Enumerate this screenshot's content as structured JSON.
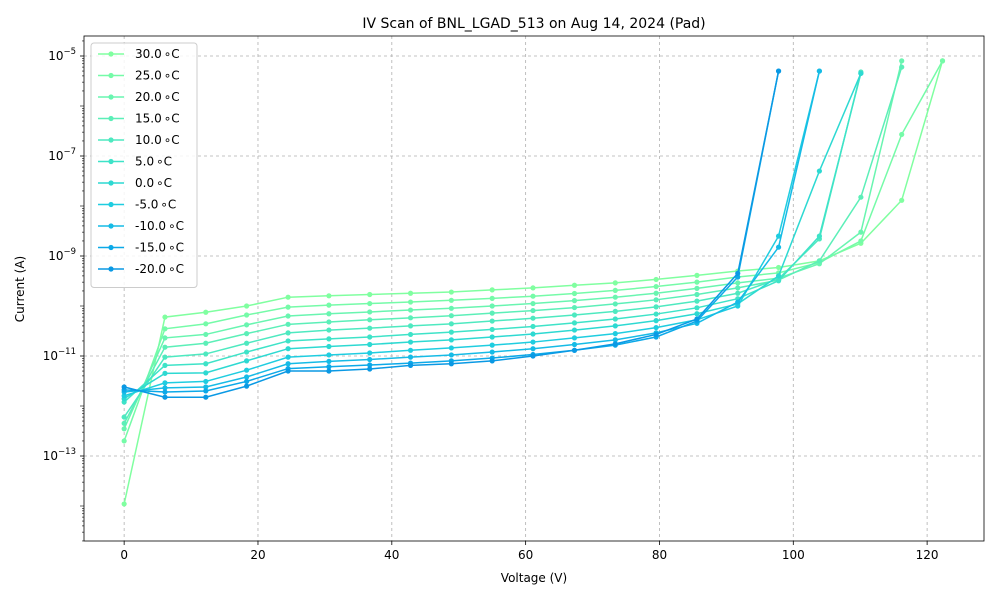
{
  "chart_data": {
    "type": "line",
    "title": "IV Scan of BNL_LGAD_513 on Aug 14, 2024 (Pad)",
    "xlabel": "Voltage (V)",
    "ylabel": "Current (A)",
    "xlim": [
      -6,
      128.5
    ],
    "ylim_log10": [
      -14.7,
      -4.6
    ],
    "y_scale": "log",
    "grid": true,
    "legend_position": "top-left",
    "x_ticks": [
      0,
      20,
      40,
      60,
      80,
      100,
      120
    ],
    "x_tick_labels": [
      "0",
      "20",
      "40",
      "60",
      "80",
      "100",
      "120"
    ],
    "y_ticks_log10": [
      -13,
      -11,
      -9,
      -7,
      -5
    ],
    "y_tick_labels": [
      "10",
      "10",
      "10",
      "10",
      "10"
    ],
    "y_tick_exponents": [
      "−13",
      "−11",
      "−9",
      "−7",
      "−5"
    ],
    "series": [
      {
        "name": "30.0$^\\circ$C",
        "label": "30.0",
        "unit": "∘C",
        "color": "#80ffa0",
        "x": [
          0,
          6.1,
          12.2,
          18.3,
          24.5,
          30.6,
          36.7,
          42.8,
          48.9,
          55.0,
          61.1,
          67.3,
          73.4,
          79.5,
          85.6,
          91.7,
          97.8,
          103.9,
          110.1,
          116.2,
          122.3
        ],
        "y": [
          1.1e-14,
          6e-11,
          7.5e-11,
          1e-10,
          1.5e-10,
          1.6e-10,
          1.7e-10,
          1.8e-10,
          1.9e-10,
          2.1e-10,
          2.3e-10,
          2.6e-10,
          2.9e-10,
          3.4e-10,
          4.1e-10,
          5e-10,
          5.9e-10,
          8e-10,
          1.8e-09,
          1.3e-08,
          8e-06
        ]
      },
      {
        "name": "25.0$^\\circ$C",
        "label": "25.0",
        "unit": "∘C",
        "color": "#75fba8",
        "x": [
          0,
          6.1,
          12.2,
          18.3,
          24.5,
          30.6,
          36.7,
          42.8,
          48.9,
          55.0,
          61.1,
          67.3,
          73.4,
          79.5,
          85.6,
          91.7,
          97.8,
          103.9,
          110.1,
          116.2,
          122.3
        ],
        "y": [
          2e-13,
          3.5e-11,
          4.4e-11,
          6.6e-11,
          9.5e-11,
          1.04e-10,
          1.12e-10,
          1.2e-10,
          1.3e-10,
          1.42e-10,
          1.57e-10,
          1.78e-10,
          2.05e-10,
          2.45e-10,
          3e-10,
          3.8e-10,
          4.6e-10,
          7.4e-10,
          2e-09,
          2.7e-07,
          8e-06
        ]
      },
      {
        "name": "20.0$^\\circ$C",
        "label": "20.0",
        "unit": "∘C",
        "color": "#69f5b0",
        "x": [
          0,
          6.1,
          12.2,
          18.3,
          24.5,
          30.6,
          36.7,
          42.8,
          48.9,
          55.0,
          61.1,
          67.3,
          73.4,
          79.5,
          85.6,
          91.7,
          97.8,
          103.9,
          110.1,
          116.2
        ],
        "y": [
          3.5e-13,
          2.3e-11,
          2.7e-11,
          4.2e-11,
          6.3e-11,
          7e-11,
          7.6e-11,
          8.3e-11,
          9e-11,
          1e-10,
          1.12e-10,
          1.28e-10,
          1.5e-10,
          1.8e-10,
          2.25e-10,
          2.9e-10,
          3.6e-10,
          7e-10,
          3e-09,
          8e-06
        ]
      },
      {
        "name": "15.0$^\\circ$C",
        "label": "15.0",
        "unit": "∘C",
        "color": "#5cefb8",
        "x": [
          0,
          6.1,
          12.2,
          18.3,
          24.5,
          30.6,
          36.7,
          42.8,
          48.9,
          55.0,
          61.1,
          67.3,
          73.4,
          79.5,
          85.6,
          91.7,
          97.8,
          103.9,
          110.1,
          116.2
        ],
        "y": [
          4.5e-13,
          1.5e-11,
          1.8e-11,
          2.8e-11,
          4.3e-11,
          4.8e-11,
          5.3e-11,
          5.8e-11,
          6.4e-11,
          7.2e-11,
          8.1e-11,
          9.3e-11,
          1.1e-10,
          1.33e-10,
          1.7e-10,
          2.3e-10,
          3.3e-10,
          8e-10,
          1.5e-08,
          6e-06
        ]
      },
      {
        "name": "10.0$^\\circ$C",
        "label": "10.0",
        "unit": "∘C",
        "color": "#4ee9c0",
        "x": [
          0,
          6.1,
          12.2,
          18.3,
          24.5,
          30.6,
          36.7,
          42.8,
          48.9,
          55.0,
          61.1,
          67.3,
          73.4,
          79.5,
          85.6,
          91.7,
          97.8,
          103.9,
          110.1
        ],
        "y": [
          6e-13,
          9.5e-12,
          1.1e-11,
          1.8e-11,
          2.9e-11,
          3.3e-11,
          3.6e-11,
          4e-11,
          4.4e-11,
          5e-11,
          5.7e-11,
          6.6e-11,
          7.8e-11,
          9.6e-11,
          1.25e-10,
          1.8e-10,
          3.5e-10,
          2.2e-09,
          4.8e-06
        ]
      },
      {
        "name": "5.0$^\\circ$C",
        "label": "5.0",
        "unit": "∘C",
        "color": "#3ee3c8",
        "x": [
          0,
          6.1,
          12.2,
          18.3,
          24.5,
          30.6,
          36.7,
          42.8,
          48.9,
          55.0,
          61.1,
          67.3,
          73.4,
          79.5,
          85.6,
          91.7,
          97.8,
          103.9,
          110.1
        ],
        "y": [
          1.2e-12,
          6.5e-12,
          7e-12,
          1.2e-11,
          2e-11,
          2.2e-11,
          2.4e-11,
          2.7e-11,
          3e-11,
          3.4e-11,
          3.9e-11,
          4.6e-11,
          5.5e-11,
          6.9e-11,
          9.2e-11,
          1.4e-10,
          3.2e-10,
          2.5e-09,
          4.5e-06
        ]
      },
      {
        "name": "0.0$^\\circ$C",
        "label": "0.0",
        "unit": "∘C",
        "color": "#2dd9d2",
        "x": [
          0,
          6.1,
          12.2,
          18.3,
          24.5,
          30.6,
          36.7,
          42.8,
          48.9,
          55.0,
          61.1,
          67.3,
          73.4,
          79.5,
          85.6,
          91.7,
          97.8,
          103.9,
          110.1
        ],
        "y": [
          1.4e-12,
          4.5e-12,
          4.6e-12,
          8e-12,
          1.4e-11,
          1.55e-11,
          1.7e-11,
          1.9e-11,
          2.1e-11,
          2.4e-11,
          2.75e-11,
          3.3e-11,
          4e-11,
          5.1e-11,
          7e-11,
          1.1e-10,
          4e-10,
          5e-08,
          4.5e-06
        ]
      },
      {
        "name": "-5.0$^\\circ$C",
        "label": "-5.0",
        "unit": "∘C",
        "color": "#1fcde0",
        "x": [
          0,
          6.1,
          12.2,
          18.3,
          24.5,
          30.6,
          36.7,
          42.8,
          48.9,
          55.0,
          61.1,
          67.3,
          73.4,
          79.5,
          85.6,
          91.7,
          97.8,
          103.9
        ],
        "y": [
          1.6e-12,
          2.9e-12,
          3.1e-12,
          5.2e-12,
          9.5e-12,
          1.05e-11,
          1.15e-11,
          1.3e-11,
          1.45e-11,
          1.65e-11,
          1.9e-11,
          2.3e-11,
          2.8e-11,
          3.7e-11,
          5.3e-11,
          1e-10,
          2.5e-09,
          5e-06
        ]
      },
      {
        "name": "-10.0$^\\circ$C",
        "label": "-10.0",
        "unit": "∘C",
        "color": "#16bbe6",
        "x": [
          0,
          6.1,
          12.2,
          18.3,
          24.5,
          30.6,
          36.7,
          42.8,
          48.9,
          55.0,
          61.1,
          67.3,
          73.4,
          79.5,
          85.6,
          91.7,
          97.8,
          103.9
        ],
        "y": [
          1.9e-12,
          2.3e-12,
          2.4e-12,
          3.8e-12,
          7e-12,
          7.8e-12,
          8.5e-12,
          9.5e-12,
          1.05e-11,
          1.2e-11,
          1.4e-11,
          1.7e-11,
          2.1e-11,
          2.9e-11,
          4.5e-11,
          1.2e-10,
          1.5e-09,
          5e-06
        ]
      },
      {
        "name": "-15.0$^\\circ$C",
        "label": "-15.0",
        "unit": "∘C",
        "color": "#0ca9e8",
        "x": [
          0,
          6.1,
          12.2,
          18.3,
          24.5,
          30.6,
          36.7,
          42.8,
          48.9,
          55.0,
          61.1,
          67.3,
          73.4,
          79.5,
          85.6,
          91.7,
          97.8
        ],
        "y": [
          2.1e-12,
          1.9e-12,
          2e-12,
          3.1e-12,
          5.6e-12,
          6.1e-12,
          6.6e-12,
          7.2e-12,
          8e-12,
          9.1e-12,
          1.07e-11,
          1.3e-11,
          1.65e-11,
          2.4e-11,
          5e-11,
          3.8e-10,
          5e-06
        ]
      },
      {
        "name": "-20.0$^\\circ$C",
        "label": "-20.0",
        "unit": "∘C",
        "color": "#0a99e4",
        "x": [
          0,
          6.1,
          12.2,
          18.3,
          24.5,
          30.6,
          36.7,
          42.8,
          48.9,
          55.0,
          61.1,
          67.3,
          73.4,
          79.5,
          85.6,
          91.7,
          97.8
        ],
        "y": [
          2.4e-12,
          1.5e-12,
          1.5e-12,
          2.5e-12,
          5e-12,
          5e-12,
          5.5e-12,
          6.5e-12,
          7e-12,
          8e-12,
          1e-11,
          1.3e-11,
          1.75e-11,
          2.7e-11,
          5.5e-11,
          4.5e-10,
          5e-06
        ]
      }
    ]
  }
}
